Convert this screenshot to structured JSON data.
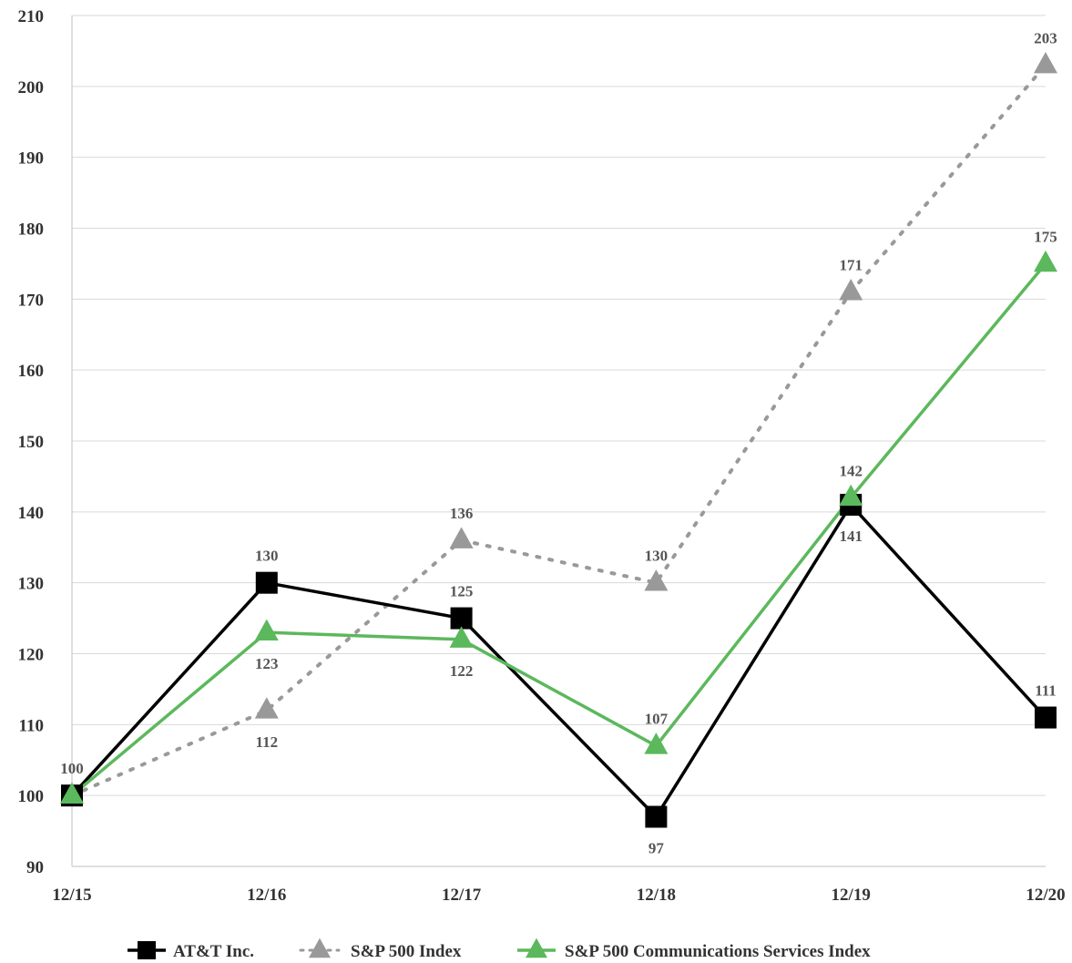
{
  "chart_data": {
    "type": "line",
    "x": [
      "12/15",
      "12/16",
      "12/17",
      "12/18",
      "12/19",
      "12/20"
    ],
    "ylim": [
      90,
      210
    ],
    "yticks": [
      90,
      100,
      110,
      120,
      130,
      140,
      150,
      160,
      170,
      180,
      190,
      200,
      210
    ],
    "grid": true,
    "legend": "bottom",
    "series": [
      {
        "name": "AT&T Inc.",
        "values": [
          100,
          130,
          125,
          97,
          141,
          111
        ],
        "color": "#000000",
        "marker": "square",
        "style": "solid",
        "labels": [
          "100",
          "130",
          "125",
          "97",
          "141",
          "111"
        ]
      },
      {
        "name": "S&P 500 Index",
        "values": [
          100,
          112,
          136,
          130,
          171,
          203
        ],
        "color": "#999999",
        "marker": "triangle",
        "style": "dotted",
        "labels": [
          "",
          "112",
          "136",
          "130",
          "171",
          "203"
        ]
      },
      {
        "name": "S&P 500 Communications Services Index",
        "values": [
          100,
          123,
          122,
          107,
          142,
          175
        ],
        "color": "#5cb85c",
        "marker": "triangle",
        "style": "solid",
        "labels": [
          "",
          "123",
          "122",
          "107",
          "142",
          "175"
        ]
      }
    ]
  }
}
